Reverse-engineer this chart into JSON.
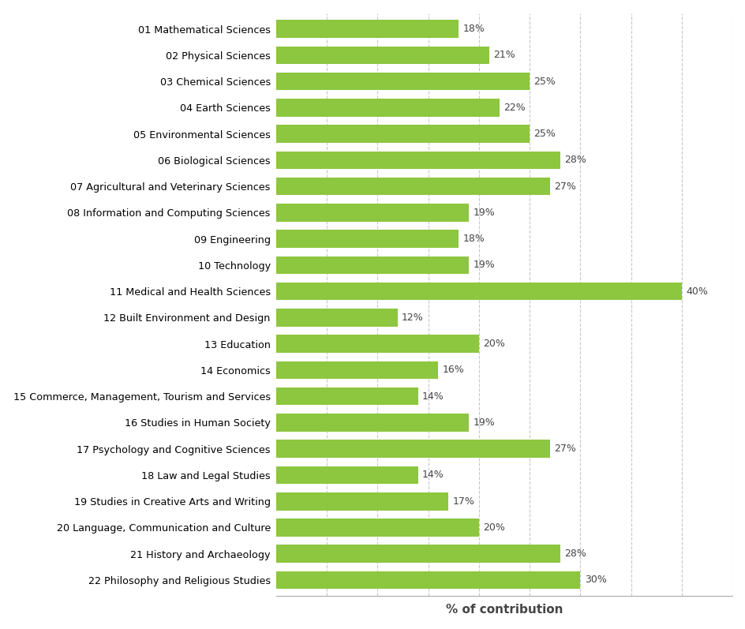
{
  "categories": [
    "01 Mathematical Sciences",
    "02 Physical Sciences",
    "03 Chemical Sciences",
    "04 Earth Sciences",
    "05 Environmental Sciences",
    "06 Biological Sciences",
    "07 Agricultural and Veterinary Sciences",
    "08 Information and Computing Sciences",
    "09 Engineering",
    "10 Technology",
    "11 Medical and Health Sciences",
    "12 Built Environment and Design",
    "13 Education",
    "14 Economics",
    "15 Commerce, Management, Tourism and Services",
    "16 Studies in Human Society",
    "17 Psychology and Cognitive Sciences",
    "18 Law and Legal Studies",
    "19 Studies in Creative Arts and Writing",
    "20 Language, Communication and Culture",
    "21 History and Archaeology",
    "22 Philosophy and Religious Studies"
  ],
  "values": [
    18,
    21,
    25,
    22,
    25,
    28,
    27,
    19,
    18,
    19,
    40,
    12,
    20,
    16,
    14,
    19,
    27,
    14,
    17,
    20,
    28,
    30
  ],
  "bar_color": "#8dc63f",
  "xlabel": "% of contribution",
  "xlim": [
    0,
    45
  ],
  "xtick_positions": [
    5,
    10,
    15,
    20,
    25,
    30,
    35,
    40,
    45
  ],
  "grid_color": "#c8c8c8",
  "label_fontsize": 9.2,
  "xlabel_fontsize": 11,
  "value_fontsize": 9,
  "bar_height": 0.68,
  "figure_bg": "#ffffff",
  "axes_bg": "#ffffff"
}
